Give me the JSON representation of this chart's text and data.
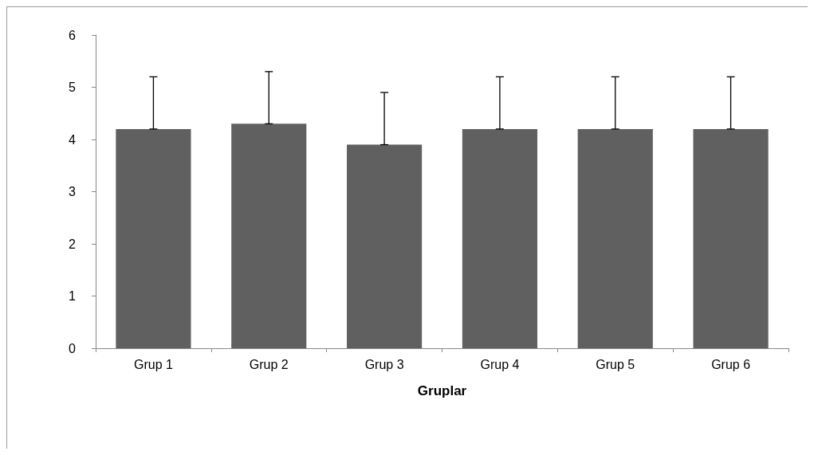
{
  "chart_data": {
    "type": "bar",
    "xlabel": "Gruplar",
    "categories": [
      "Grup 1",
      "Grup 2",
      "Grup 3",
      "Grup 4",
      "Grup 5",
      "Grup 6"
    ],
    "values": [
      4.2,
      4.3,
      3.9,
      4.2,
      4.2,
      4.2
    ],
    "errors": [
      [
        4.2,
        5.2
      ],
      [
        4.3,
        5.3
      ],
      [
        3.9,
        4.9
      ],
      [
        4.2,
        5.2
      ],
      [
        4.2,
        5.2
      ],
      [
        4.2,
        5.2
      ]
    ],
    "color": "#606060",
    "ylim": [
      0,
      6
    ],
    "yticks": [
      0,
      1,
      2,
      3,
      4,
      5,
      6
    ],
    "grid": false
  }
}
